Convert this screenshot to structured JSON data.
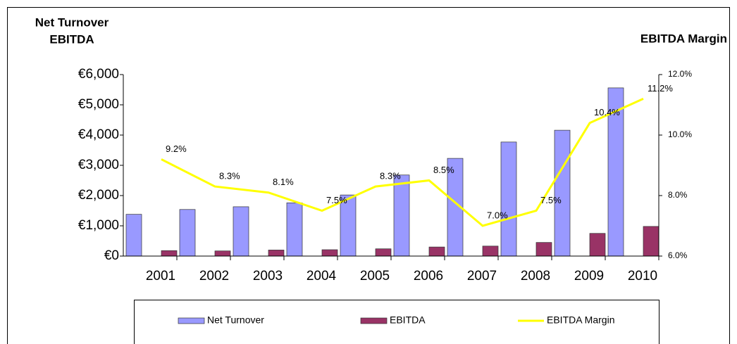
{
  "chart_data": {
    "type": "bar_line",
    "ylabel": [
      "Net Turnover",
      "EBITDA"
    ],
    "y2label": "EBITDA Margin",
    "categories": [
      "2001",
      "2002",
      "2003",
      "2004",
      "2005",
      "2006",
      "2007",
      "2008",
      "2009",
      "2010"
    ],
    "series": [
      {
        "name": "Net Turnover",
        "color": "#9999ff",
        "values": [
          1380,
          1540,
          1630,
          1760,
          2020,
          2680,
          3230,
          3770,
          4160,
          5560
        ]
      },
      {
        "name": "EBITDA",
        "color": "#993366",
        "values": [
          180,
          170,
          200,
          210,
          240,
          300,
          330,
          450,
          750,
          980
        ]
      },
      {
        "name": "EBITDA Margin",
        "color": "#ffff00",
        "axis": "y2",
        "values": [
          9.2,
          8.3,
          8.1,
          7.5,
          8.3,
          8.5,
          7.0,
          7.5,
          10.4,
          11.2
        ],
        "value_labels": [
          "9.2%",
          "8.3%",
          "8.1%",
          "7.5%",
          "8.3%",
          "8.5%",
          "7.0%",
          "7.5%",
          "10.4%",
          "11.2%"
        ]
      }
    ],
    "ylim": [
      0,
      6000
    ],
    "yticks": [
      {
        "value": 0,
        "label": "€0"
      },
      {
        "value": 1000,
        "label": "€1,000"
      },
      {
        "value": 2000,
        "label": "€2,000"
      },
      {
        "value": 3000,
        "label": "€3,000"
      },
      {
        "value": 4000,
        "label": "€4,000"
      },
      {
        "value": 5000,
        "label": "€5,000"
      },
      {
        "value": 6000,
        "label": "€6,000"
      }
    ],
    "y2lim": [
      6,
      12
    ],
    "y2ticks": [
      {
        "value": 6,
        "label": "6.0%"
      },
      {
        "value": 8,
        "label": "8.0%"
      },
      {
        "value": 10,
        "label": "10.0%"
      },
      {
        "value": 12,
        "label": "12.0%"
      }
    ],
    "legend": "bottom"
  }
}
